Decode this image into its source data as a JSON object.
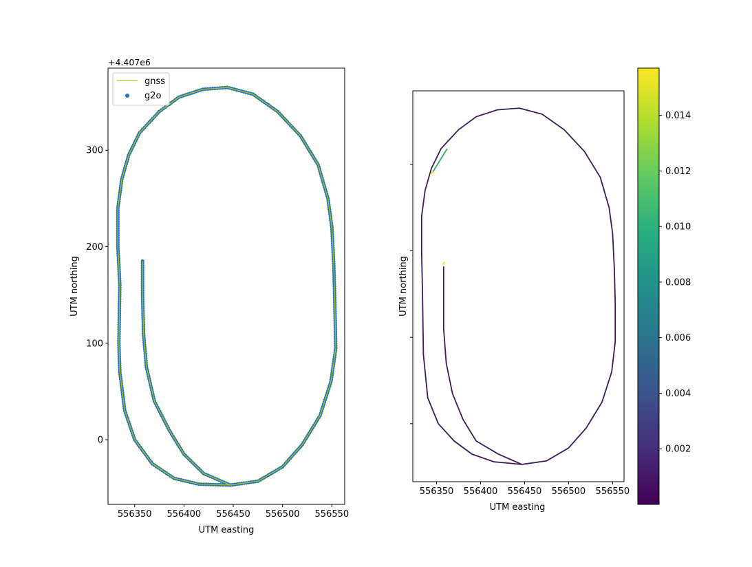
{
  "chart_data": [
    {
      "type": "line",
      "xlabel": "UTM easting",
      "ylabel": "UTM northing",
      "y_offset_label": "+4.407e6",
      "xlim": [
        556323,
        556563
      ],
      "ylim": [
        -67,
        385
      ],
      "xticks": [
        556350,
        556400,
        556450,
        556500,
        556550
      ],
      "yticks": [
        0,
        100,
        200,
        300
      ],
      "legend": {
        "position": "upper-left",
        "entries": [
          "gnss",
          "g2o"
        ]
      },
      "colors": {
        "gnss": "#bcbd22",
        "g2o": "#1f77b4"
      },
      "series": [
        {
          "name": "gnss",
          "kind": "line",
          "x": [
            556358,
            556358,
            556359,
            556362,
            556370,
            556385,
            556400,
            556420,
            556447,
            556475,
            556500,
            556520,
            556538,
            556549,
            556554,
            556553,
            556552,
            556550,
            556546,
            556536,
            556518,
            556495,
            556470,
            556444,
            556419,
            556395,
            556375,
            556355,
            556344,
            556337,
            556333,
            556333,
            556335,
            556334,
            556335,
            556340,
            556350,
            556368,
            556390,
            556415,
            556447
          ],
          "y": [
            185,
            150,
            110,
            75,
            40,
            10,
            -15,
            -35,
            -47,
            -43,
            -28,
            -5,
            25,
            60,
            95,
            140,
            180,
            220,
            250,
            285,
            315,
            340,
            358,
            365,
            363,
            355,
            340,
            318,
            295,
            270,
            240,
            200,
            160,
            100,
            70,
            30,
            0,
            -25,
            -40,
            -46,
            -47
          ]
        },
        {
          "name": "g2o",
          "kind": "scatter",
          "x": [
            556358,
            556358,
            556359,
            556362,
            556370,
            556385,
            556400,
            556420,
            556447,
            556475,
            556500,
            556520,
            556538,
            556549,
            556554,
            556553,
            556552,
            556550,
            556546,
            556536,
            556518,
            556495,
            556470,
            556444,
            556419,
            556395,
            556375,
            556355,
            556344,
            556337,
            556333,
            556333,
            556335,
            556334,
            556335,
            556340,
            556350,
            556368,
            556390,
            556415,
            556447
          ],
          "y": [
            185,
            150,
            110,
            75,
            40,
            10,
            -15,
            -35,
            -47,
            -43,
            -28,
            -5,
            25,
            60,
            95,
            140,
            180,
            220,
            250,
            285,
            315,
            340,
            358,
            365,
            363,
            355,
            340,
            318,
            295,
            270,
            240,
            200,
            160,
            100,
            70,
            30,
            0,
            -25,
            -40,
            -46,
            -47
          ]
        }
      ]
    },
    {
      "type": "line",
      "xlabel": "UTM easting",
      "ylabel": "UTM northing",
      "xlim": [
        556323,
        556563
      ],
      "ylim": [
        -67,
        385
      ],
      "xticks": [
        556350,
        556400,
        556450,
        556500,
        556550
      ],
      "colormap": "viridis",
      "line_color": "#3b1a57",
      "colorbar": {
        "range": [
          0.0,
          0.0157
        ],
        "ticks": [
          0.002,
          0.004,
          0.006,
          0.008,
          0.01,
          0.012,
          0.014
        ],
        "tick_labels": [
          "0.002",
          "0.004",
          "0.006",
          "0.008",
          "0.010",
          "0.012",
          "0.014"
        ]
      },
      "highlight_segments": [
        {
          "x": [
            556345,
            556362
          ],
          "y": [
            290,
            318
          ],
          "value": 0.0115,
          "color": "#3cb66f"
        },
        {
          "x": [
            556343,
            556346
          ],
          "y": [
            288,
            292
          ],
          "value": 0.015,
          "color": "#e5e419"
        },
        {
          "x": [
            556357,
            556359
          ],
          "y": [
            184,
            187
          ],
          "value": 0.015,
          "color": "#e5e419"
        }
      ],
      "series": [
        {
          "kind": "line",
          "x": [
            556358,
            556358,
            556358,
            556361,
            556368,
            556380,
            556395,
            556420,
            556447,
            556475,
            556500,
            556520,
            556538,
            556549,
            556553,
            556553,
            556552,
            556550,
            556546,
            556536,
            556518,
            556495,
            556470,
            556444,
            556419,
            556395,
            556375,
            556355,
            556344,
            556337,
            556333,
            556333,
            556334,
            556335,
            556340,
            556352,
            556370,
            556390,
            556415,
            556447
          ],
          "y": [
            182,
            150,
            110,
            70,
            35,
            5,
            -20,
            -35,
            -47,
            -43,
            -28,
            -5,
            25,
            60,
            95,
            140,
            180,
            220,
            250,
            285,
            315,
            340,
            358,
            365,
            363,
            355,
            340,
            318,
            295,
            270,
            240,
            200,
            150,
            80,
            30,
            0,
            -20,
            -35,
            -44,
            -47
          ]
        }
      ]
    }
  ]
}
